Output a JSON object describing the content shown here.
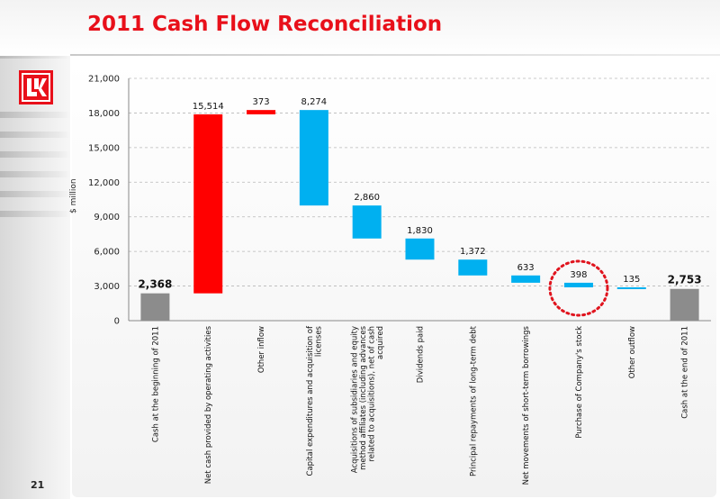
{
  "slide": {
    "title": "2011 Cash Flow Reconciliation",
    "page_number": "21",
    "logo_icon": "lukoil-logo-icon"
  },
  "colors": {
    "title": "#e8101a",
    "inflow": "#ff0000",
    "outflow": "#00b0f0",
    "total": "#8c8c8c",
    "highlight_ring": "#e0141e"
  },
  "chart_data": {
    "type": "bar",
    "subtype": "waterfall",
    "title": "",
    "xlabel": "",
    "ylabel": "$ million",
    "ylim": [
      0,
      21000
    ],
    "yticks": [
      "0",
      "3,000",
      "6,000",
      "9,000",
      "12,000",
      "15,000",
      "18,000",
      "21,000"
    ],
    "grid": true,
    "legend": "none",
    "categories": [
      "Cash at the beginning of 2011",
      "Net cash provided by operating activities",
      "Other inflow",
      "Capital expenditures and acquisition of licenses",
      "Acquisitions of subsidiaries and equity method affiliates (including advances related to acquisitions), net of cash acquired",
      "Dividends paid",
      "Principal repayments of long-term debt",
      "Net movements of short-term borrowings",
      "Purchase of Company's stock",
      "Other outflow",
      "Cash at the end of 2011"
    ],
    "bars": [
      {
        "kind": "total",
        "start": 0,
        "end": 2368,
        "label": "2,368"
      },
      {
        "kind": "inflow",
        "start": 2368,
        "end": 17882,
        "label": "15,514"
      },
      {
        "kind": "inflow",
        "start": 17882,
        "end": 18255,
        "label": "373"
      },
      {
        "kind": "outflow",
        "start": 18255,
        "end": 9981,
        "label": "8,274"
      },
      {
        "kind": "outflow",
        "start": 9981,
        "end": 7121,
        "label": "2,860"
      },
      {
        "kind": "outflow",
        "start": 7121,
        "end": 5291,
        "label": "1,830"
      },
      {
        "kind": "outflow",
        "start": 5291,
        "end": 3919,
        "label": "1,372"
      },
      {
        "kind": "outflow",
        "start": 3919,
        "end": 3286,
        "label": "633"
      },
      {
        "kind": "outflow",
        "start": 3286,
        "end": 2888,
        "label": "398"
      },
      {
        "kind": "outflow",
        "start": 2888,
        "end": 2753,
        "label": "135"
      },
      {
        "kind": "total",
        "start": 0,
        "end": 2753,
        "label": "2,753"
      }
    ],
    "category_label_lines": [
      [
        "Cash at the beginning of 2011"
      ],
      [
        "Net cash provided by operating activities"
      ],
      [
        "Other inflow"
      ],
      [
        "Capital expenditures and acquisition of",
        "licenses"
      ],
      [
        "Acquisitions of subsidiaries and equity",
        "method affiliates (including advances",
        "related to acquisitions), net of cash",
        "acquired"
      ],
      [
        "Dividends paid"
      ],
      [
        "Principal repayments of long-term debt"
      ],
      [
        "Net  movements of short-term borrowings"
      ],
      [
        "Purchase of Company's stock"
      ],
      [
        "Other outflow"
      ],
      [
        "Cash at the end of 2011"
      ]
    ],
    "highlighted_category": "Purchase of Company's stock"
  }
}
